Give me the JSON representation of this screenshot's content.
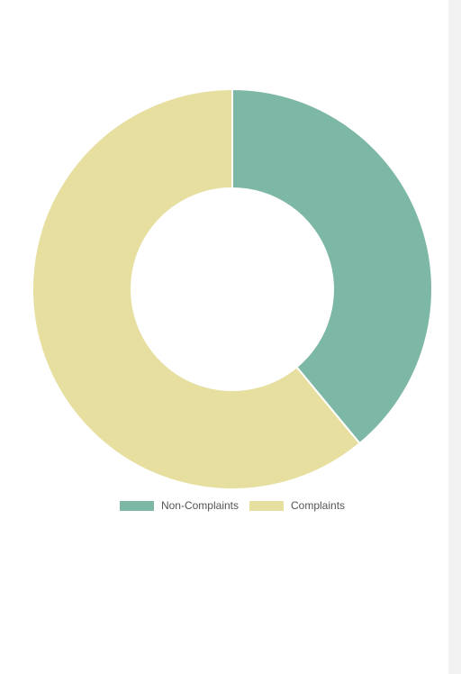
{
  "chart_data": {
    "type": "pie",
    "variant": "doughnut",
    "title": "",
    "legend_position": "bottom",
    "categories": [
      "Non-Complaints",
      "Complaints"
    ],
    "values": [
      39,
      61
    ],
    "colors": [
      "#7db7a6",
      "#e6dfa0"
    ],
    "legend": [
      {
        "label": "Non-Complaints",
        "color": "#7db7a6"
      },
      {
        "label": "Complaints",
        "color": "#e6dfa0"
      }
    ]
  }
}
